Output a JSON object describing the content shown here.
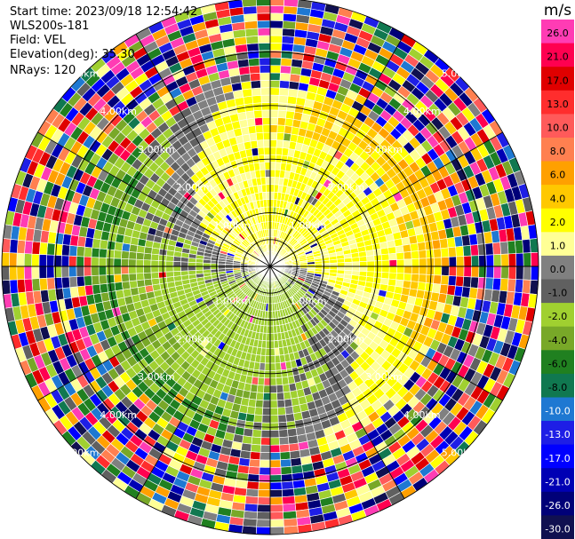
{
  "info": {
    "start_time": "Start time: 2023/09/18 12:54:42",
    "station": "WLS200s-181",
    "field": "Field: VEL",
    "elevation": "Elevation(deg): 35.30",
    "nrays": "NRays: 120"
  },
  "ring_label": "km",
  "ring_value_labels": [
    "0.50",
    "1.00",
    "2.00",
    "3.00",
    "4.00",
    "5.00"
  ],
  "colorbar": {
    "unit": "m/s",
    "ticks": [
      "26.0",
      "21.0",
      "17.0",
      "13.0",
      "10.0",
      "8.0",
      "6.0",
      "4.0",
      "2.0",
      "1.0",
      "0.0",
      "-1.0",
      "-2.0",
      "-4.0",
      "-6.0",
      "-8.0",
      "-10.0",
      "-13.0",
      "-17.0",
      "-21.0",
      "-26.0",
      "-30.0"
    ],
    "colors": [
      "#ff3cb4",
      "#ff0050",
      "#e00000",
      "#ff2d2d",
      "#ff5a5a",
      "#ff8050",
      "#ffa000",
      "#ffc800",
      "#ffff00",
      "#ffff96",
      "#808080",
      "#606060",
      "#a0d030",
      "#78a828",
      "#208020",
      "#107850",
      "#1e78d2",
      "#1e1ee6",
      "#0000ff",
      "#0000b4",
      "#000078",
      "#101050"
    ]
  },
  "velocity_field": {
    "rays": 120,
    "gates": 36,
    "max_range_km": 5.0,
    "pattern": "approaching-receding dipole: positive (yellow/orange) to the north, negative (gray/green) to the south and west, noisy random values beyond ~3.5 km"
  }
}
